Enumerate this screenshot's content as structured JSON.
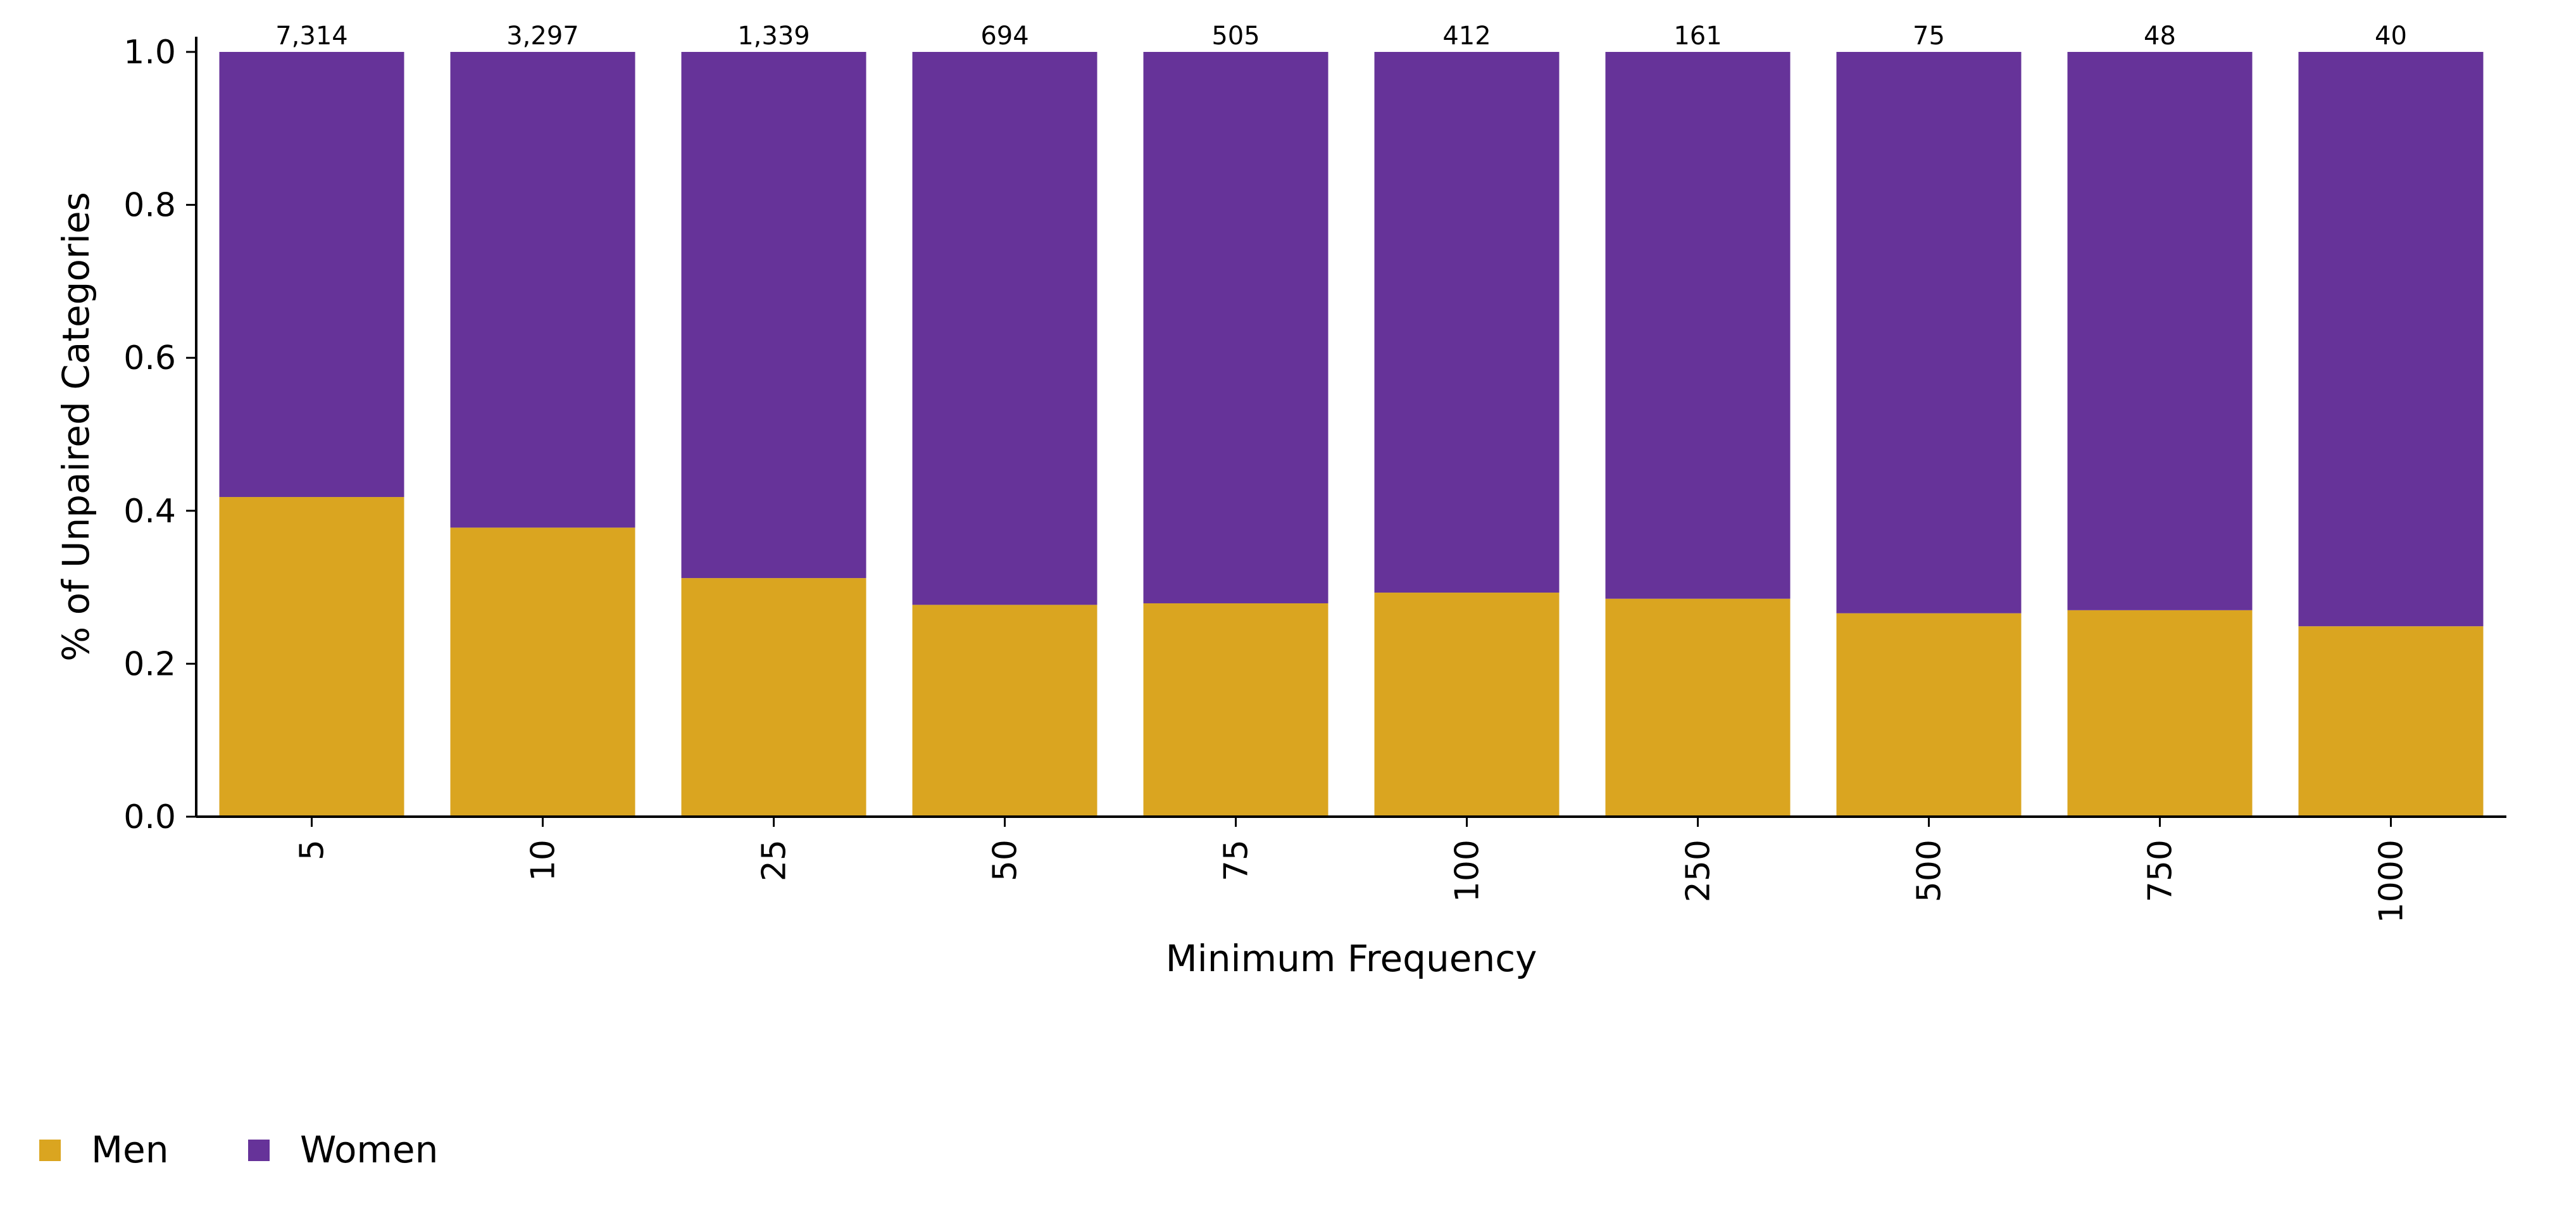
{
  "chart_data": {
    "type": "bar",
    "stacked": true,
    "categories": [
      "5",
      "10",
      "25",
      "50",
      "75",
      "100",
      "250",
      "500",
      "750",
      "1000"
    ],
    "series": [
      {
        "name": "Men",
        "color": "#DAA520",
        "values": [
          0.418,
          0.378,
          0.312,
          0.277,
          0.279,
          0.293,
          0.285,
          0.266,
          0.27,
          0.249
        ]
      },
      {
        "name": "Women",
        "color": "#663399",
        "values": [
          0.582,
          0.622,
          0.688,
          0.723,
          0.721,
          0.707,
          0.715,
          0.734,
          0.73,
          0.751
        ]
      }
    ],
    "counts": [
      "7,314",
      "3,297",
      "1,339",
      "694",
      "505",
      "412",
      "161",
      "75",
      "48",
      "40"
    ],
    "xlabel": "Minimum Frequency",
    "ylabel": "% of Unpaired Categories",
    "ylim": [
      0,
      1.0
    ],
    "yticks": [
      "0.0",
      "0.2",
      "0.4",
      "0.6",
      "0.8",
      "1.0"
    ],
    "xtick_rotation": 90,
    "grid": false,
    "legend_position": "bottom-left"
  }
}
